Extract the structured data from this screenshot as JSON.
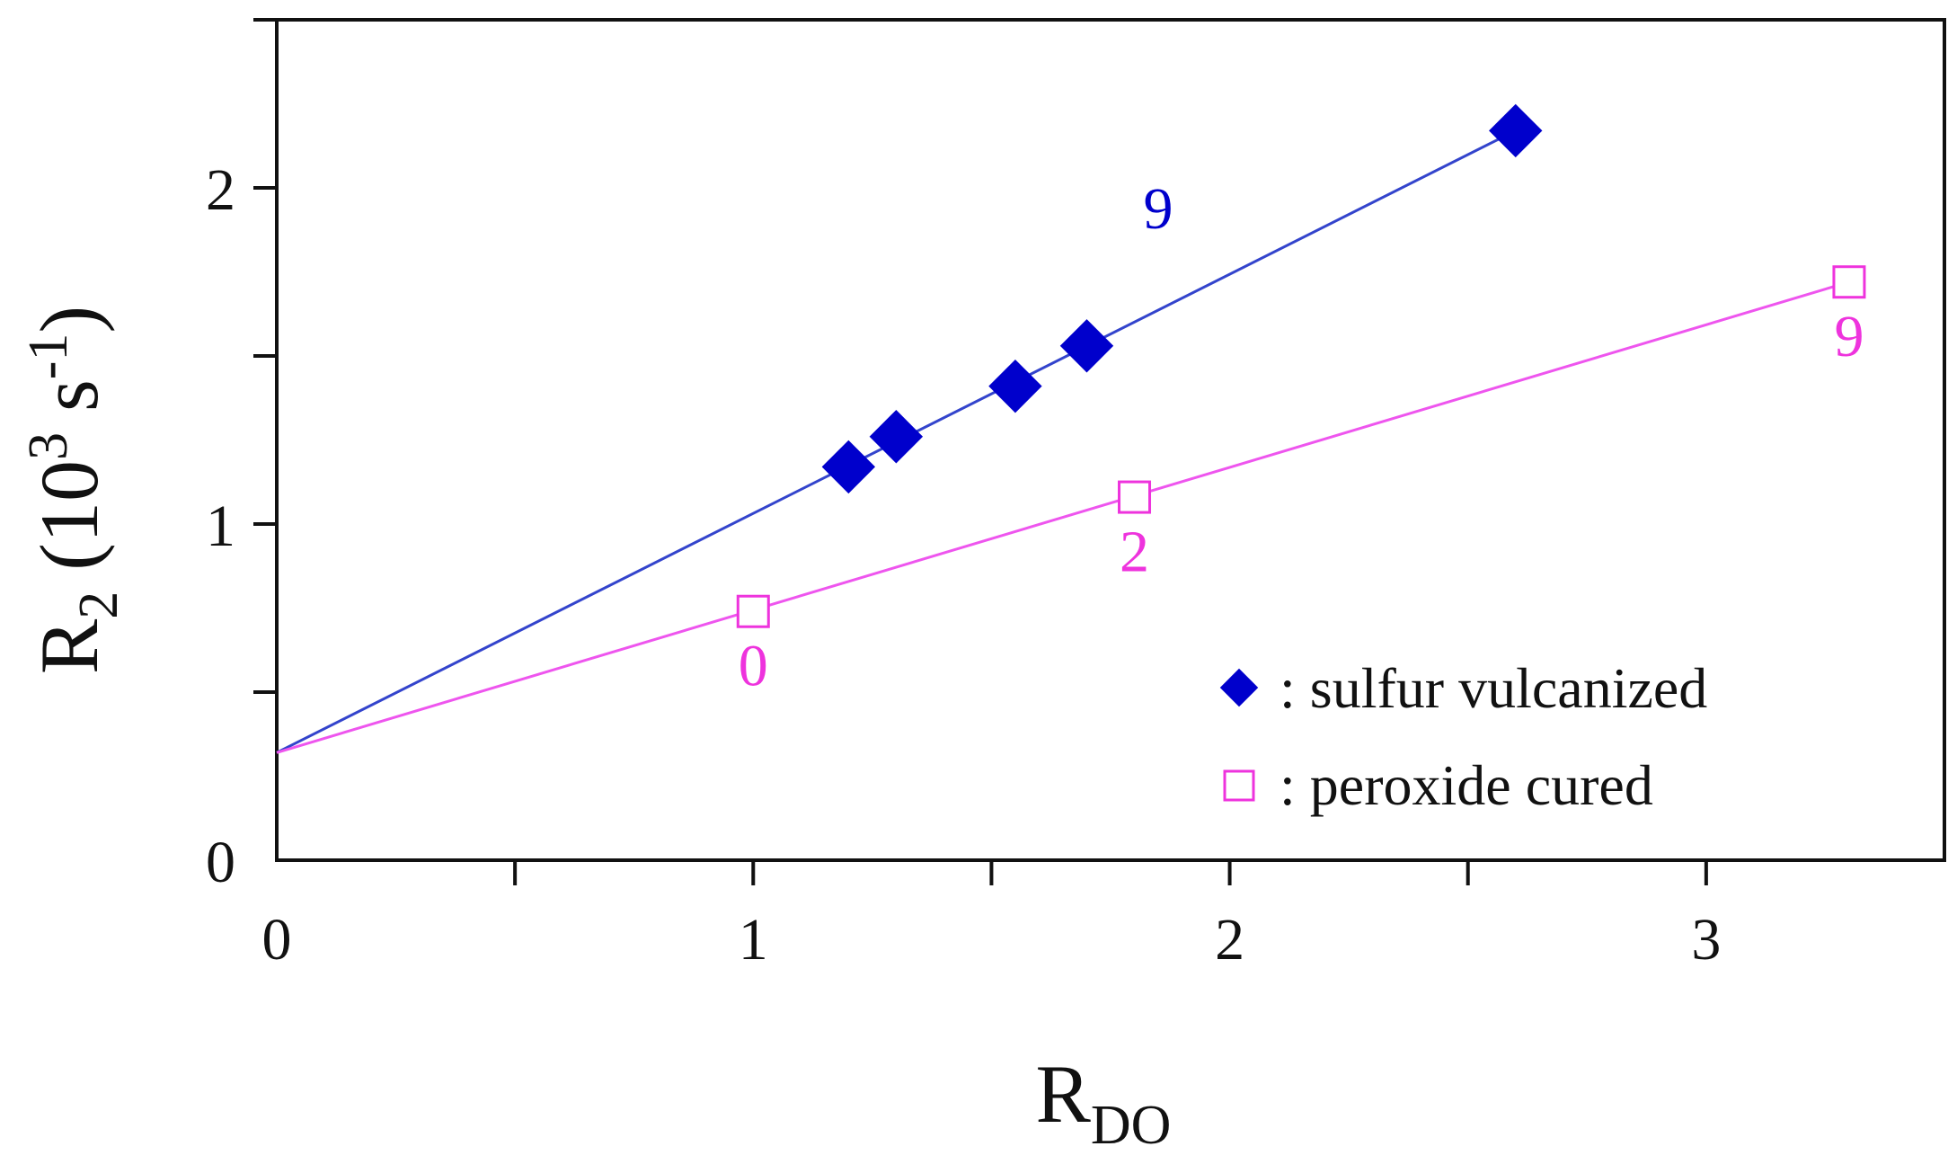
{
  "chart_data": {
    "type": "scatter",
    "xlabel": {
      "main": "R",
      "sub": "DO"
    },
    "ylabel": {
      "main": "R",
      "sub": "2",
      "paren_open": " (10",
      "sup1": "3",
      "mid": " s",
      "sup2": "-1",
      "paren_close": ")"
    },
    "xlim": [
      0,
      3.5
    ],
    "ylim": [
      0,
      2.5
    ],
    "x_major_ticks": [
      0,
      1,
      2,
      3
    ],
    "x_tick_labels": [
      "0",
      "1",
      "2",
      "3"
    ],
    "x_minor_ticks": [
      0.5,
      1.5,
      2.5,
      3.5
    ],
    "y_major_ticks": [
      0,
      1,
      2
    ],
    "y_tick_labels": [
      "0",
      "1",
      "2"
    ],
    "y_minor_ticks": [
      0.5,
      1.5,
      2.5
    ],
    "grid": false,
    "legend_position": "bottom-right",
    "series": [
      {
        "name": ": sulfur vulcanized",
        "marker": "filled-diamond",
        "color": "#0000cc",
        "line_color": "#3344cc",
        "points": [
          {
            "x": 1.2,
            "y": 1.17
          },
          {
            "x": 1.3,
            "y": 1.26
          },
          {
            "x": 1.55,
            "y": 1.41
          },
          {
            "x": 1.7,
            "y": 1.53
          },
          {
            "x": 2.6,
            "y": 2.17
          }
        ],
        "fit_line": [
          [
            0,
            0.32
          ],
          [
            2.6,
            2.17
          ]
        ],
        "annotations": [
          {
            "text": "9",
            "x": 1.85,
            "y": 1.88
          }
        ]
      },
      {
        "name": ": peroxide cured",
        "marker": "open-square",
        "color": "#ee33dd",
        "line_color": "#ee55ee",
        "points": [
          {
            "x": 1.0,
            "y": 0.74
          },
          {
            "x": 1.8,
            "y": 1.08
          },
          {
            "x": 3.3,
            "y": 1.72
          }
        ],
        "fit_line": [
          [
            0,
            0.32
          ],
          [
            3.3,
            1.72
          ]
        ],
        "annotations": [
          {
            "text": "0",
            "x": 1.0,
            "y": 0.52
          },
          {
            "text": "2",
            "x": 1.8,
            "y": 0.86
          },
          {
            "text": "9",
            "x": 3.3,
            "y": 1.5
          }
        ]
      }
    ]
  }
}
